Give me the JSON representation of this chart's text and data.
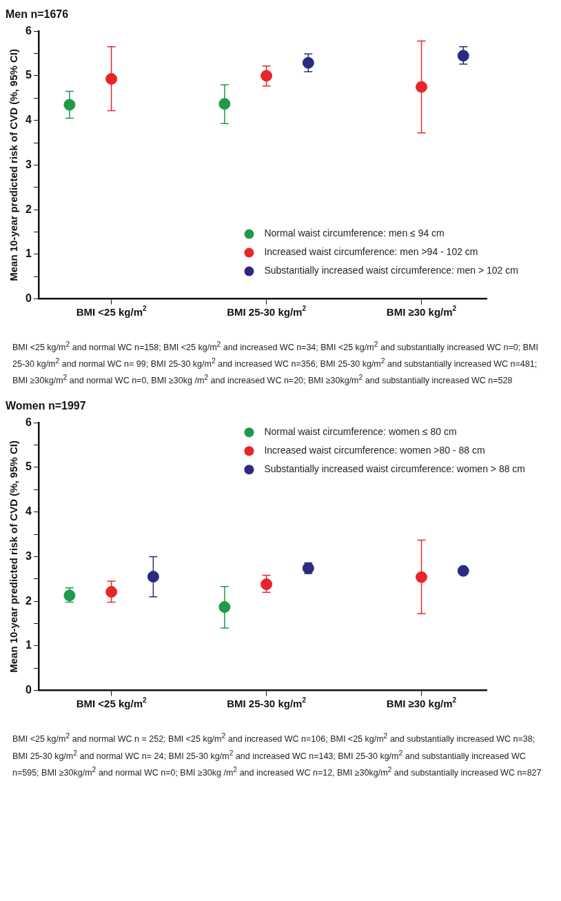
{
  "chart_data": [
    {
      "type": "scatter",
      "title": "Men n=1676",
      "ylabel": "Mean 10-year predicted risk of CVD (%, 95% CI)",
      "categories": [
        "BMI <25 kg/m$^{2}$",
        "BMI 25-30 kg/m$^{2}$",
        "BMI ≥30 kg/m$^{2}$"
      ],
      "series": [
        {
          "name": "Normal waist circumference: men ≤ 94 cm",
          "color": "#1e9a4a",
          "values": [
            4.35,
            4.37,
            null
          ],
          "errors": [
            [
              4.05,
              4.65
            ],
            [
              3.93,
              4.8
            ],
            null
          ]
        },
        {
          "name": "Increased waist circumference: men >94 - 102 cm",
          "color": "#e8262a",
          "values": [
            4.93,
            5.0,
            4.75
          ],
          "errors": [
            [
              4.22,
              5.65
            ],
            [
              4.77,
              5.22
            ],
            [
              3.72,
              5.78
            ]
          ]
        },
        {
          "name": "Substantially increased waist circumference: men > 102 cm",
          "color": "#2b2a80",
          "values": [
            null,
            5.29,
            5.45
          ],
          "errors": [
            null,
            [
              5.09,
              5.49
            ],
            [
              5.26,
              5.65
            ]
          ]
        }
      ],
      "ylim": [
        0,
        6
      ],
      "yticks": [
        0,
        {
          "value": 0.5,
          "label": null
        },
        1,
        {
          "value": 1.5,
          "label": null
        },
        2,
        {
          "value": 2.5,
          "label": null
        },
        3,
        {
          "value": 3.5,
          "label": null
        },
        4,
        {
          "value": 4.5,
          "label": null
        },
        5,
        {
          "value": 5.5,
          "label": null
        },
        6
      ],
      "marker": "circle",
      "legend": "bottom right",
      "annotations": [
        "BMI <25 kg/m$^{2}$ and normal WC n=158; BMI <25 kg/m$^{2}$ and increased WC n=34; BMI <25 kg/m$^{2}$ and substantially increased WC n=0; BMI 25-30 kg/m$^{2}$ and normal WC n= 99; BMI 25-30 kg/m$^{2}$ and increased WC n=356; BMI 25-30 kg/m$^{2}$ and substantially increased WC n=481; BMI ≥30kg/m$^{2}$ and normal WC n=0, BMI ≥30kg /m$^{2}$ and increased WC n=20; BMI ≥30kg/m$^{2}$ and substantially increased WC n=528"
      ]
    },
    {
      "type": "scatter",
      "title": "Women n=1997",
      "ylabel": "Mean 10-year predicted risk of CVD (%, 95% CI)",
      "categories": [
        "BMI <25 kg/m$^{2}$",
        "BMI 25-30 kg/m$^{2}$",
        "BMI ≥30 kg/m$^{2}$"
      ],
      "series": [
        {
          "name": "Normal waist circumference: women ≤ 80 cm",
          "color": "#1e9a4a",
          "values": [
            2.13,
            1.87,
            null
          ],
          "errors": [
            [
              1.98,
              2.3
            ],
            [
              1.4,
              2.33
            ],
            null
          ]
        },
        {
          "name": "Increased waist circumference: women >80 - 88 cm",
          "color": "#e8262a",
          "values": [
            2.21,
            2.38,
            2.54
          ],
          "errors": [
            [
              1.98,
              2.45
            ],
            [
              2.2,
              2.58
            ],
            [
              1.72,
              3.37
            ]
          ]
        },
        {
          "name": "Substantially increased waist circumference: women > 88 cm",
          "color": "#2b2a80",
          "values": [
            2.55,
            2.74,
            2.68
          ],
          "errors": [
            [
              2.1,
              3.0
            ],
            [
              2.62,
              2.86
            ],
            null
          ]
        }
      ],
      "ylim": [
        0,
        6
      ],
      "yticks": [
        0,
        {
          "value": 0.5,
          "label": null
        },
        1,
        {
          "value": 1.5,
          "label": null
        },
        2,
        {
          "value": 2.5,
          "label": null
        },
        3,
        {
          "value": 3.5,
          "label": null
        },
        4,
        {
          "value": 4.5,
          "label": null
        },
        5,
        {
          "value": 5.5,
          "label": null
        },
        6
      ],
      "marker": "circle",
      "legend": "top right",
      "annotations": [
        "BMI <25 kg/m$^{2}$ and normal WC n = 252;  BMI <25 kg/m$^{2}$ and increased WC n=106; BMI <25 kg/m$^{2}$ and substantially increased WC n=38; BMI 25-30 kg/m$^{2}$ and normal WC n= 24; BMI 25-30 kg/m$^{2}$ and increased WC n=143; BMI 25-30 kg/m$^{2}$ and substantially increased WC n=595; BMI ≥30kg/m$^{2}$ and normal WC n=0; BMI ≥30kg /m$^{2}$ and increased WC n=12, BMI ≥30kg/m$^{2}$ and substantially increased WC n=827"
      ]
    }
  ]
}
